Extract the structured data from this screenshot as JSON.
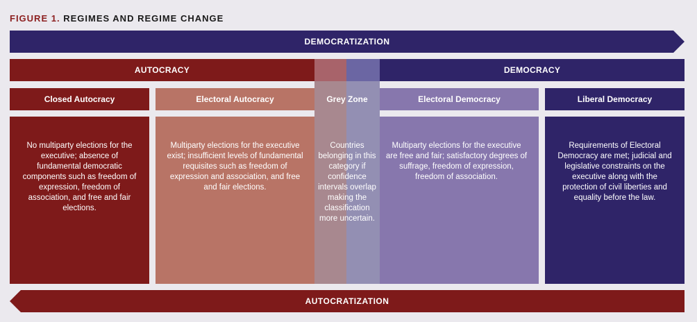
{
  "figure": {
    "label": "FIGURE 1.",
    "title": "REGIMES AND REGIME CHANGE"
  },
  "arrows": {
    "democratization": "DEMOCRATIZATION",
    "autocratization": "AUTOCRATIZATION"
  },
  "bands": {
    "autocracy": "AUTOCRACY",
    "democracy": "DEMOCRACY"
  },
  "categories": [
    {
      "title": "Closed Autocracy",
      "description": "No multiparty elections for the executive; absence of fundamental democratic components such as  freedom of expression, freedom of association, and free and fair elections."
    },
    {
      "title": "Electoral Autocracy",
      "description": "Multiparty elections for the executive exist; insufficient levels of fundamental requisites such as freedom of expression and association, and free and fair elections."
    },
    {
      "title": "Grey Zone",
      "description": "Countries belonging in this category if confidence intervals overlap making the classification more uncertain."
    },
    {
      "title": "Electoral Democracy",
      "description": "Multiparty elections for the executive are free and fair; satisfactory degrees of suffrage, freedom of expression, freedom of association."
    },
    {
      "title": "Liberal Democracy",
      "description": "Requirements of Electoral Democracy are met; judicial and legislative constraints on the executive along with the protection of civil liberties and equality before the law."
    }
  ],
  "colors": {
    "autocracy": "#7e1a1a",
    "democracy": "#2f2468",
    "electoral_autocracy": "#b87466",
    "electoral_democracy": "#8777ad",
    "grey_zone_left": "#a8888f",
    "grey_zone_right": "#938fb3",
    "grey_zone_overlay": "#cdc7cc",
    "background": "#ebe9ee"
  }
}
